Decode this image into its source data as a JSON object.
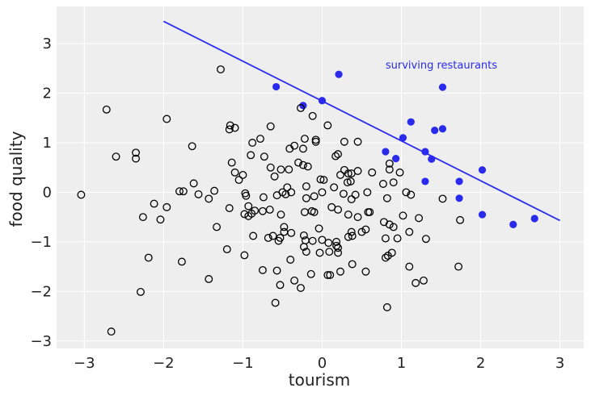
{
  "chart_data": {
    "type": "scatter",
    "xlabel": "tourism",
    "ylabel": "food quality",
    "xlim": [
      -3.35,
      3.3
    ],
    "ylim": [
      -3.15,
      3.75
    ],
    "xticks": [
      -3,
      -2,
      -1,
      0,
      1,
      2,
      3
    ],
    "yticks": [
      -3,
      -2,
      -1,
      0,
      1,
      2,
      3
    ],
    "xtick_labels": [
      "−3",
      "−2",
      "−1",
      "0",
      "1",
      "2",
      "3"
    ],
    "ytick_labels": [
      "−3",
      "−2",
      "−1",
      "0",
      "1",
      "2",
      "3"
    ],
    "grid": true,
    "background": "#eeeeee",
    "colors": {
      "accent": "#2a2aee",
      "open_marker": "#000000",
      "grid": "#ffffff"
    },
    "line": {
      "x": [
        -2,
        3
      ],
      "y": [
        3.45,
        -0.57
      ]
    },
    "annotation": {
      "text": "surviving restaurants",
      "x": 0.8,
      "y": 2.5
    },
    "series": [
      {
        "marker": "filled",
        "points": [
          [
            -0.58,
            2.13
          ],
          [
            -0.24,
            1.75
          ],
          [
            0,
            1.85
          ],
          [
            0.21,
            2.38
          ],
          [
            1.52,
            2.12
          ],
          [
            1.12,
            1.42
          ],
          [
            1.42,
            1.25
          ],
          [
            1.52,
            1.28
          ],
          [
            1.02,
            1.1
          ],
          [
            0.8,
            0.82
          ],
          [
            1.3,
            0.82
          ],
          [
            0.93,
            0.68
          ],
          [
            1.38,
            0.67
          ],
          [
            2.02,
            0.45
          ],
          [
            1.73,
            0.22
          ],
          [
            1.3,
            0.22
          ],
          [
            1.73,
            -0.12
          ],
          [
            2.02,
            -0.45
          ],
          [
            2.41,
            -0.65
          ],
          [
            2.68,
            -0.53
          ]
        ]
      },
      {
        "marker": "open",
        "points": [
          [
            -1.28,
            2.48
          ],
          [
            -2.72,
            1.67
          ],
          [
            -1.96,
            1.48
          ],
          [
            -0.65,
            1.33
          ],
          [
            -0.27,
            1.7
          ],
          [
            -0.12,
            1.54
          ],
          [
            0.07,
            1.35
          ],
          [
            -1.16,
            1.35
          ],
          [
            -1.1,
            1.3
          ],
          [
            -1.17,
            1.27
          ],
          [
            -0.78,
            1.08
          ],
          [
            -0.88,
            1.0
          ],
          [
            -0.22,
            1.08
          ],
          [
            -0.08,
            1.02
          ],
          [
            -0.08,
            1.06
          ],
          [
            0.28,
            1.02
          ],
          [
            0.45,
            1.02
          ],
          [
            -2.35,
            0.8
          ],
          [
            -2.6,
            0.72
          ],
          [
            -2.35,
            0.68
          ],
          [
            -1.64,
            0.93
          ],
          [
            -0.41,
            0.88
          ],
          [
            -0.35,
            0.94
          ],
          [
            -0.24,
            0.88
          ],
          [
            -0.73,
            0.72
          ],
          [
            -0.9,
            0.75
          ],
          [
            -1.14,
            0.6
          ],
          [
            -0.3,
            0.6
          ],
          [
            -0.24,
            0.55
          ],
          [
            -0.65,
            0.5
          ],
          [
            -0.52,
            0.46
          ],
          [
            -0.42,
            0.46
          ],
          [
            -0.18,
            0.52
          ],
          [
            0.17,
            0.73
          ],
          [
            0.2,
            0.77
          ],
          [
            0.85,
            0.58
          ],
          [
            0.85,
            0.46
          ],
          [
            0.98,
            0.4
          ],
          [
            0.63,
            0.4
          ],
          [
            0.45,
            0.43
          ],
          [
            0.37,
            0.38
          ],
          [
            0.28,
            0.45
          ],
          [
            0.33,
            0.38
          ],
          [
            0.23,
            0.35
          ],
          [
            -1.1,
            0.4
          ],
          [
            -1.0,
            0.35
          ],
          [
            -1.05,
            0.25
          ],
          [
            -0.6,
            0.32
          ],
          [
            -0.02,
            0.26
          ],
          [
            0.02,
            0.25
          ],
          [
            0.32,
            0.2
          ],
          [
            0.36,
            0.22
          ],
          [
            0.77,
            0.17
          ],
          [
            0.9,
            0.2
          ],
          [
            1.06,
            0.0
          ],
          [
            1.12,
            -0.05
          ],
          [
            -1.62,
            0.18
          ],
          [
            -1.8,
            0.02
          ],
          [
            -1.75,
            0.02
          ],
          [
            -1.36,
            0.03
          ],
          [
            -1.43,
            -0.13
          ],
          [
            -1.56,
            -0.04
          ],
          [
            -1.96,
            -0.3
          ],
          [
            -2.04,
            -0.55
          ],
          [
            -2.26,
            -0.5
          ],
          [
            -2.12,
            -0.23
          ],
          [
            -3.04,
            -0.05
          ],
          [
            -1.17,
            -0.32
          ],
          [
            -0.97,
            -0.02
          ],
          [
            -0.96,
            -0.07
          ],
          [
            -0.74,
            -0.1
          ],
          [
            -0.57,
            -0.06
          ],
          [
            -0.46,
            -0.04
          ],
          [
            -0.44,
            0.1
          ],
          [
            -0.39,
            0.0
          ],
          [
            -0.5,
            0.0
          ],
          [
            -0.2,
            0.12
          ],
          [
            -0.2,
            -0.12
          ],
          [
            -0.1,
            -0.08
          ],
          [
            0.0,
            0.0
          ],
          [
            0.15,
            0.1
          ],
          [
            0.27,
            -0.03
          ],
          [
            0.37,
            -0.14
          ],
          [
            0.42,
            -0.05
          ],
          [
            0.57,
            0.0
          ],
          [
            0.82,
            -0.12
          ],
          [
            -0.85,
            -0.37
          ],
          [
            -0.89,
            -0.43
          ],
          [
            -0.93,
            -0.48
          ],
          [
            -0.98,
            -0.44
          ],
          [
            -0.93,
            -0.28
          ],
          [
            -0.75,
            -0.38
          ],
          [
            -0.66,
            -0.35
          ],
          [
            -0.52,
            -0.45
          ],
          [
            -0.22,
            -0.4
          ],
          [
            -0.13,
            -0.38
          ],
          [
            -0.1,
            -0.4
          ],
          [
            0.12,
            -0.3
          ],
          [
            0.2,
            -0.35
          ],
          [
            0.33,
            -0.45
          ],
          [
            0.45,
            -0.5
          ],
          [
            0.58,
            -0.4
          ],
          [
            0.6,
            -0.4
          ],
          [
            0.78,
            -0.6
          ],
          [
            -0.48,
            -0.7
          ],
          [
            -0.48,
            -0.8
          ],
          [
            -0.39,
            -0.82
          ],
          [
            -0.53,
            -0.92
          ],
          [
            -0.23,
            -0.87
          ],
          [
            -0.21,
            -0.97
          ],
          [
            -0.12,
            -0.98
          ],
          [
            -0.04,
            -0.73
          ],
          [
            0.0,
            -0.96
          ],
          [
            0.18,
            -1.0
          ],
          [
            0.18,
            -1.08
          ],
          [
            0.2,
            -1.12
          ],
          [
            0.33,
            -0.9
          ],
          [
            0.37,
            -0.8
          ],
          [
            0.38,
            -0.88
          ],
          [
            0.5,
            -0.8
          ],
          [
            0.55,
            -0.75
          ],
          [
            0.85,
            -0.65
          ],
          [
            0.9,
            -0.7
          ],
          [
            0.8,
            -0.93
          ],
          [
            0.95,
            -0.93
          ],
          [
            1.1,
            -0.8
          ],
          [
            1.22,
            -0.52
          ],
          [
            1.02,
            -0.47
          ],
          [
            -0.55,
            -0.98
          ],
          [
            -0.68,
            -0.92
          ],
          [
            -0.87,
            -0.88
          ],
          [
            -1.33,
            -0.7
          ],
          [
            -1.2,
            -1.15
          ],
          [
            -0.98,
            -1.27
          ],
          [
            -0.62,
            -0.88
          ],
          [
            -0.2,
            -1.2
          ],
          [
            -0.03,
            -1.22
          ],
          [
            0.08,
            -1.02
          ],
          [
            0.09,
            -1.2
          ],
          [
            0.2,
            -1.22
          ],
          [
            0.1,
            -1.67
          ],
          [
            0.07,
            -1.67
          ],
          [
            0.23,
            -1.6
          ],
          [
            0.38,
            -1.45
          ],
          [
            0.55,
            -1.6
          ],
          [
            0.8,
            -1.32
          ],
          [
            0.83,
            -1.28
          ],
          [
            0.88,
            -1.22
          ],
          [
            1.1,
            -1.5
          ],
          [
            1.18,
            -1.83
          ],
          [
            1.28,
            -1.78
          ],
          [
            1.31,
            -0.94
          ],
          [
            1.72,
            -1.5
          ],
          [
            1.74,
            -0.56
          ],
          [
            1.52,
            -0.13
          ],
          [
            -0.4,
            -1.36
          ],
          [
            -0.57,
            -1.58
          ],
          [
            -0.53,
            -1.87
          ],
          [
            -0.35,
            -1.78
          ],
          [
            -0.27,
            -1.93
          ],
          [
            -0.14,
            -1.65
          ],
          [
            -0.75,
            -1.57
          ],
          [
            -0.59,
            -2.23
          ],
          [
            -1.43,
            -1.75
          ],
          [
            -1.77,
            -1.4
          ],
          [
            -2.19,
            -1.32
          ],
          [
            -2.29,
            -2.01
          ],
          [
            -2.66,
            -2.81
          ],
          [
            0.82,
            -2.32
          ],
          [
            -0.23,
            -1.1
          ]
        ]
      }
    ]
  }
}
